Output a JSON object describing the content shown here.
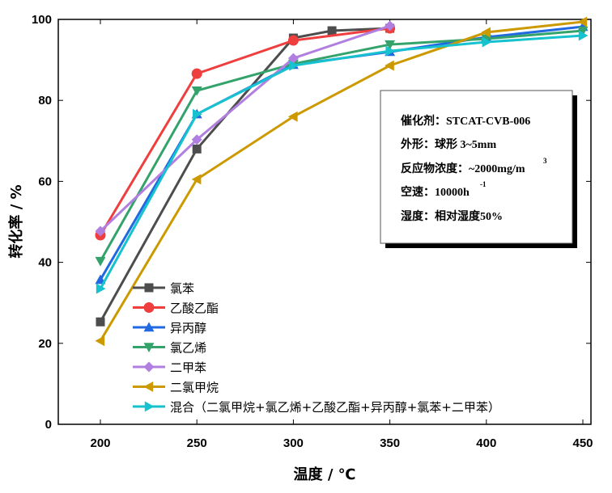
{
  "chart_data": {
    "type": "line",
    "xlabel": "温度 / ℃",
    "ylabel": "转化率 / %",
    "xlim": [
      178,
      455
    ],
    "ylim": [
      0,
      100
    ],
    "xticks": [
      200,
      250,
      300,
      350,
      400,
      450
    ],
    "yticks": [
      0,
      20,
      40,
      60,
      80,
      100
    ],
    "legend_position": "bottom-left",
    "series": [
      {
        "name": "氯苯",
        "color": "#4d4d4d",
        "marker": "square",
        "x": [
          200,
          250,
          300,
          320,
          350
        ],
        "y": [
          25.3,
          68,
          95.4,
          97.2,
          97.8
        ]
      },
      {
        "name": "乙酸乙酯",
        "color": "#ef3e3e",
        "marker": "circle",
        "x": [
          200,
          250,
          300,
          350
        ],
        "y": [
          46.7,
          86.6,
          94.8,
          97.8
        ]
      },
      {
        "name": "异丙醇",
        "color": "#2169e0",
        "marker": "triangle-up",
        "x": [
          200,
          250,
          300,
          350,
          400,
          450
        ],
        "y": [
          35.7,
          76.6,
          88.8,
          92,
          95.6,
          98.2
        ]
      },
      {
        "name": "氯乙烯",
        "color": "#33a36b",
        "marker": "triangle-down",
        "x": [
          200,
          250,
          300,
          350,
          400,
          450
        ],
        "y": [
          40.3,
          82.4,
          89,
          93.8,
          95.2,
          97.2
        ]
      },
      {
        "name": "二甲苯",
        "color": "#b07fe0",
        "marker": "diamond",
        "x": [
          200,
          250,
          300,
          350
        ],
        "y": [
          47.7,
          70.3,
          90.4,
          98.4
        ]
      },
      {
        "name": "二氯甲烷",
        "color": "#cc9a00",
        "marker": "triangle-left",
        "x": [
          200,
          250,
          300,
          350,
          400,
          450
        ],
        "y": [
          20.6,
          60.5,
          76,
          88.6,
          96.8,
          99.4
        ]
      },
      {
        "name": "混合（二氯甲烷+氯乙烯+乙酸乙酯+异丙醇+氯苯+二甲苯）",
        "color": "#17c2cf",
        "marker": "triangle-right",
        "x": [
          200,
          250,
          300,
          350,
          400,
          450
        ],
        "y": [
          33.5,
          76.6,
          88.6,
          92.2,
          94.4,
          96
        ]
      }
    ],
    "annotations": {
      "catalyst": "催化剂：STCAT-CVB-006",
      "shape": "外形：球形 3~5mm",
      "concentration": "反应物浓度：~2000mg/m",
      "concentration_sup": "3",
      "space_velocity": "空速：10000h",
      "space_velocity_sup": "-1",
      "humidity": "湿度：相对湿度50%"
    }
  }
}
